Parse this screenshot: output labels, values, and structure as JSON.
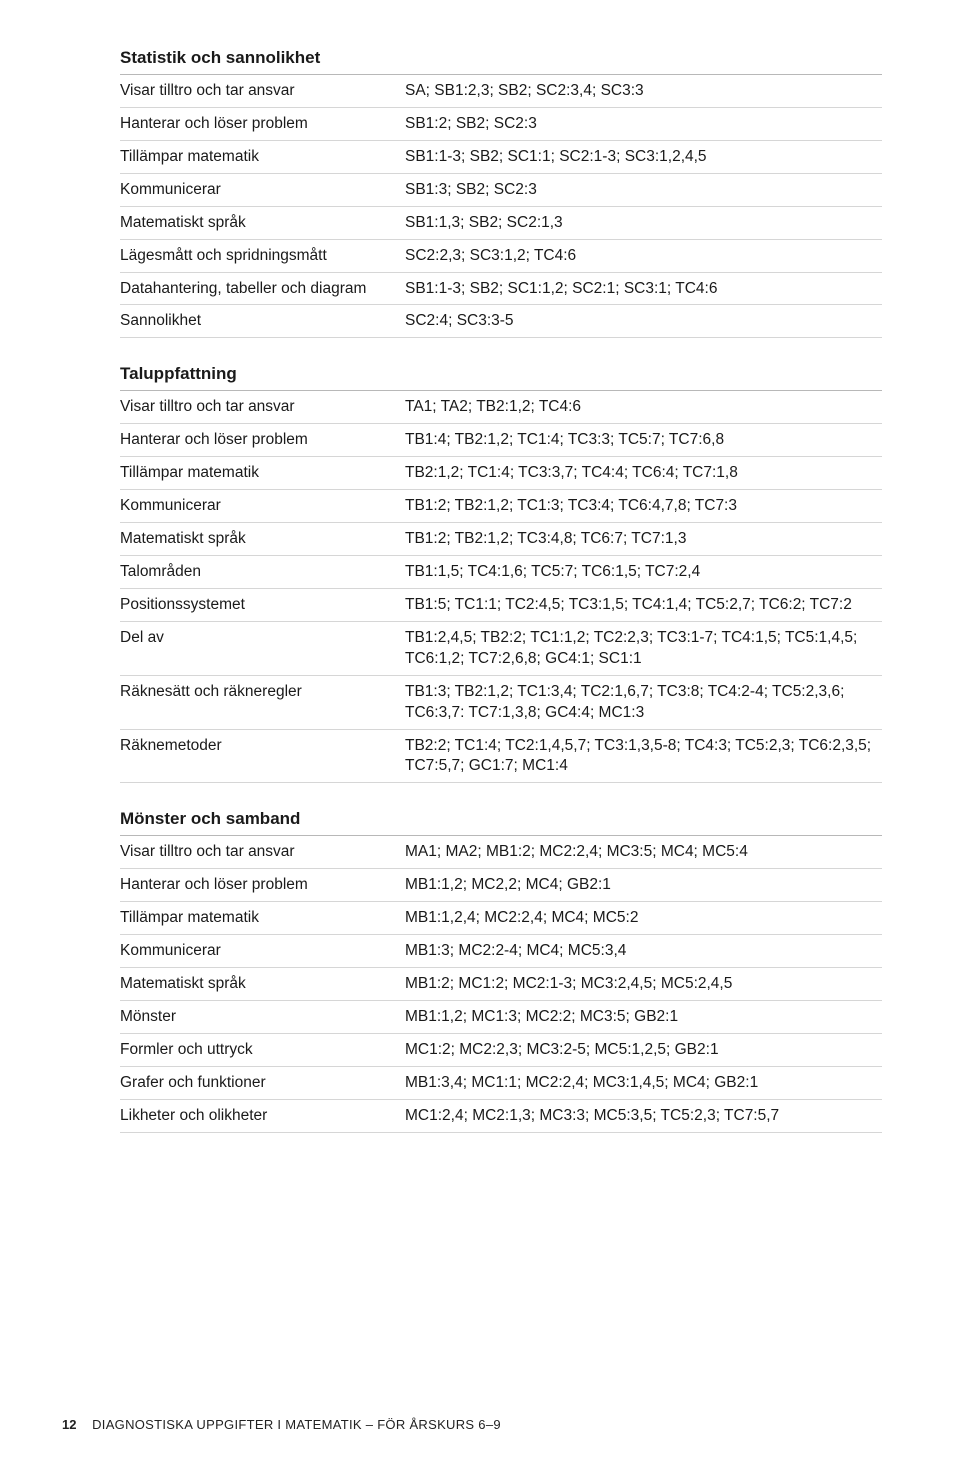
{
  "sections": [
    {
      "heading": "Statistik och sannolikhet",
      "rows": [
        {
          "label": "Visar tilltro och tar ansvar",
          "value": "SA; SB1:2,3; SB2; SC2:3,4; SC3:3"
        },
        {
          "label": "Hanterar och löser problem",
          "value": "SB1:2; SB2; SC2:3"
        },
        {
          "label": "Tillämpar matematik",
          "value": "SB1:1-3; SB2; SC1:1; SC2:1-3; SC3:1,2,4,5"
        },
        {
          "label": "Kommunicerar",
          "value": "SB1:3; SB2; SC2:3"
        },
        {
          "label": "Matematiskt språk",
          "value": "SB1:1,3; SB2; SC2:1,3"
        },
        {
          "label": "Lägesmått och spridningsmått",
          "value": "SC2:2,3; SC3:1,2; TC4:6"
        },
        {
          "label": "Datahantering, tabeller och diagram",
          "value": "SB1:1-3; SB2; SC1:1,2; SC2:1; SC3:1; TC4:6"
        },
        {
          "label": "Sannolikhet",
          "value": "SC2:4; SC3:3-5"
        }
      ]
    },
    {
      "heading": "Taluppfattning",
      "rows": [
        {
          "label": "Visar tilltro och tar ansvar",
          "value": "TA1; TA2; TB2:1,2; TC4:6"
        },
        {
          "label": "Hanterar och löser problem",
          "value": "TB1:4; TB2:1,2; TC1:4; TC3:3; TC5:7; TC7:6,8"
        },
        {
          "label": "Tillämpar matematik",
          "value": "TB2:1,2; TC1:4; TC3:3,7; TC4:4; TC6:4; TC7:1,8"
        },
        {
          "label": "Kommunicerar",
          "value": "TB1:2; TB2:1,2; TC1:3; TC3:4; TC6:4,7,8; TC7:3"
        },
        {
          "label": "Matematiskt språk",
          "value": "TB1:2; TB2:1,2; TC3:4,8; TC6:7; TC7:1,3"
        },
        {
          "label": "Talområden",
          "value": "TB1:1,5; TC4:1,6; TC5:7; TC6:1,5; TC7:2,4"
        },
        {
          "label": "Positionssystemet",
          "value": "TB1:5; TC1:1; TC2:4,5; TC3:1,5; TC4:1,4; TC5:2,7; TC6:2; TC7:2"
        },
        {
          "label": "Del av",
          "value": "TB1:2,4,5; TB2:2; TC1:1,2; TC2:2,3; TC3:1-7; TC4:1,5; TC5:1,4,5; TC6:1,2; TC7:2,6,8; GC4:1; SC1:1"
        },
        {
          "label": "Räknesätt och räkneregler",
          "value": "TB1:3; TB2:1,2; TC1:3,4; TC2:1,6,7; TC3:8; TC4:2-4; TC5:2,3,6; TC6:3,7: TC7:1,3,8; GC4:4; MC1:3"
        },
        {
          "label": "Räknemetoder",
          "value": "TB2:2; TC1:4; TC2:1,4,5,7; TC3:1,3,5-8; TC4:3; TC5:2,3; TC6:2,3,5; TC7:5,7; GC1:7; MC1:4"
        }
      ]
    },
    {
      "heading": "Mönster och samband",
      "rows": [
        {
          "label": "Visar tilltro och tar ansvar",
          "value": "MA1; MA2; MB1:2; MC2:2,4; MC3:5; MC4; MC5:4"
        },
        {
          "label": "Hanterar och löser problem",
          "value": "MB1:1,2; MC2,2; MC4; GB2:1"
        },
        {
          "label": "Tillämpar matematik",
          "value": "MB1:1,2,4; MC2:2,4; MC4; MC5:2"
        },
        {
          "label": "Kommunicerar",
          "value": "MB1:3; MC2:2-4; MC4; MC5:3,4"
        },
        {
          "label": "Matematiskt språk",
          "value": "MB1:2; MC1:2; MC2:1-3; MC3:2,4,5; MC5:2,4,5"
        },
        {
          "label": "Mönster",
          "value": "MB1:1,2; MC1:3; MC2:2; MC3:5; GB2:1"
        },
        {
          "label": "Formler och uttryck",
          "value": "MC1:2; MC2:2,3; MC3:2-5; MC5:1,2,5; GB2:1"
        },
        {
          "label": "Grafer och funktioner",
          "value": "MB1:3,4; MC1:1; MC2:2,4; MC3:1,4,5; MC4; GB2:1"
        },
        {
          "label": "Likheter och olikheter",
          "value": "MC1:2,4; MC2:1,3; MC3:3; MC5:3,5; TC5:2,3; TC7:5,7"
        }
      ]
    }
  ],
  "footer": {
    "page": "12",
    "title": "DIAGNOSTISKA UPPGIFTER I MATEMATIK – FÖR ÅRSKURS 6–9"
  }
}
